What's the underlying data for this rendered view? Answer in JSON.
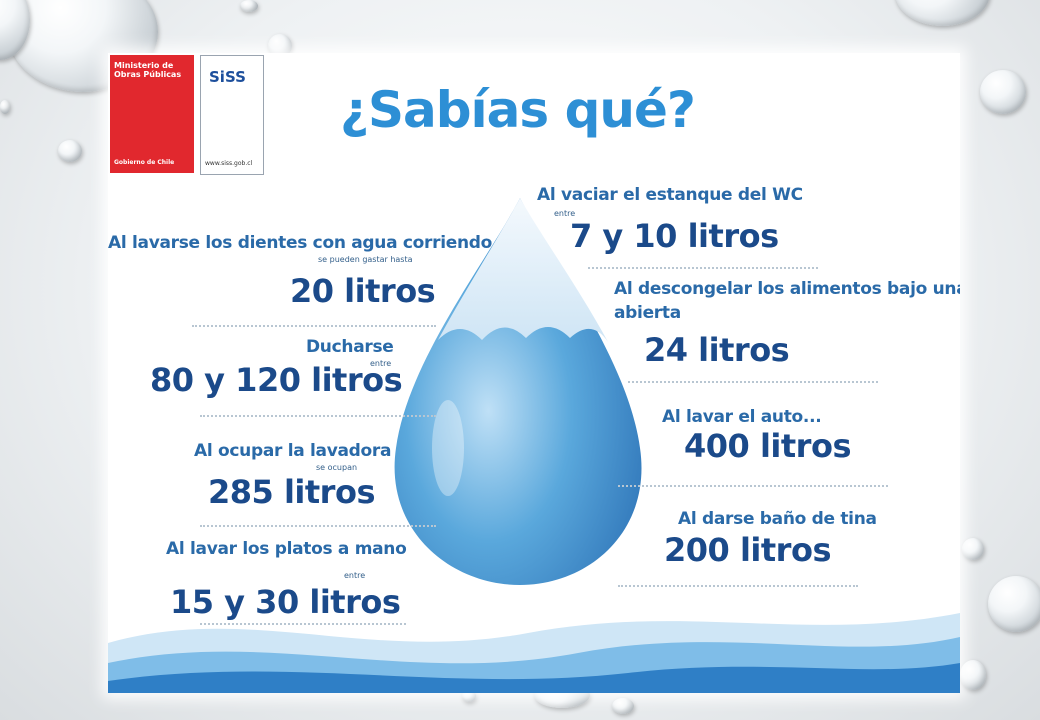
{
  "logos": {
    "ministry_line1": "Ministerio de Obras Públicas",
    "ministry_line2": "Gobierno de Chile",
    "siss_name": "SiSS",
    "siss_url": "www.siss.gob.cl"
  },
  "title": "¿Sabías qué?",
  "facts_left": [
    {
      "label": "Al lavarse los dientes con agua corriendo",
      "connector": "se pueden gastar hasta",
      "amount": "20 litros"
    },
    {
      "label": "Ducharse",
      "connector": "entre",
      "amount": "80 y 120 litros"
    },
    {
      "label": "Al ocupar la lavadora",
      "connector": "se ocupan",
      "amount": "285 litros"
    },
    {
      "label": "Al lavar los platos a mano",
      "connector": "entre",
      "amount": "15 y 30 litros"
    }
  ],
  "facts_right": [
    {
      "label": "Al vaciar el estanque del WC",
      "connector": "entre",
      "amount": "7 y 10 litros"
    },
    {
      "label": "Al descongelar los alimentos bajo una l",
      "label2": "abierta",
      "amount": "24 litros"
    },
    {
      "label": "Al lavar el auto...",
      "amount": "400 litros"
    },
    {
      "label": "Al darse baño de tina",
      "amount": "200 litros"
    }
  ],
  "colors": {
    "title": "#2d8fd5",
    "label": "#2a6aa8",
    "amount": "#1b4a8a",
    "ministry_red": "#e1282e",
    "drop_blue": "#3a8fd0"
  }
}
